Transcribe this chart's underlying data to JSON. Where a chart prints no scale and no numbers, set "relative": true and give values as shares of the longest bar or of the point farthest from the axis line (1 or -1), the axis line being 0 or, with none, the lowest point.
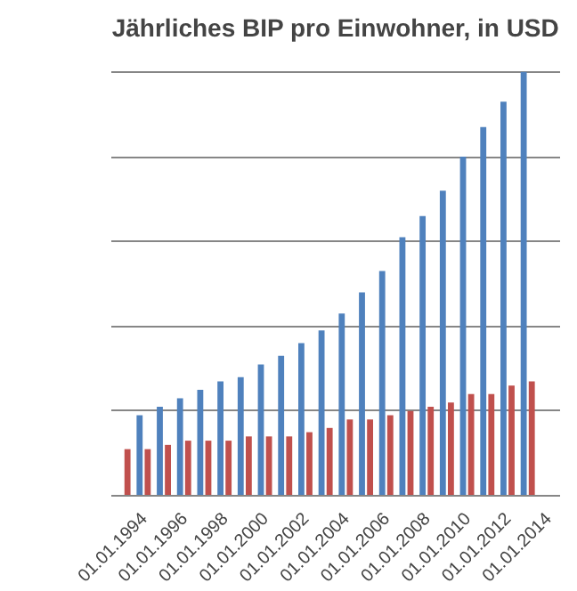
{
  "chart_data": {
    "type": "bar",
    "title": "Jährliches BIP pro Einwohner, in USD",
    "relative": true,
    "grid": "y",
    "categories": [
      null,
      "01.01.1994",
      null,
      "01.01.1996",
      null,
      "01.01.1998",
      null,
      "01.01.2000",
      null,
      "01.01.2002",
      null,
      "01.01.2004",
      null,
      "01.01.2006",
      null,
      "01.01.2008",
      null,
      "01.01.2010",
      null,
      "01.01.2012",
      null,
      "01.01.2014"
    ],
    "series": [
      {
        "color": "#4f81bd",
        "values": [
          null,
          0.19,
          0.21,
          0.23,
          0.25,
          0.27,
          0.28,
          0.31,
          0.33,
          0.36,
          0.39,
          0.43,
          0.48,
          0.53,
          0.61,
          0.66,
          0.72,
          0.8,
          0.87,
          0.93,
          1.0,
          null
        ]
      },
      {
        "color": "#c0504d",
        "values": [
          0.11,
          0.11,
          0.12,
          0.13,
          0.13,
          0.13,
          0.14,
          0.14,
          0.14,
          0.15,
          0.16,
          0.18,
          0.18,
          0.19,
          0.2,
          0.21,
          0.22,
          0.24,
          0.24,
          0.26,
          0.27,
          null
        ]
      }
    ]
  }
}
